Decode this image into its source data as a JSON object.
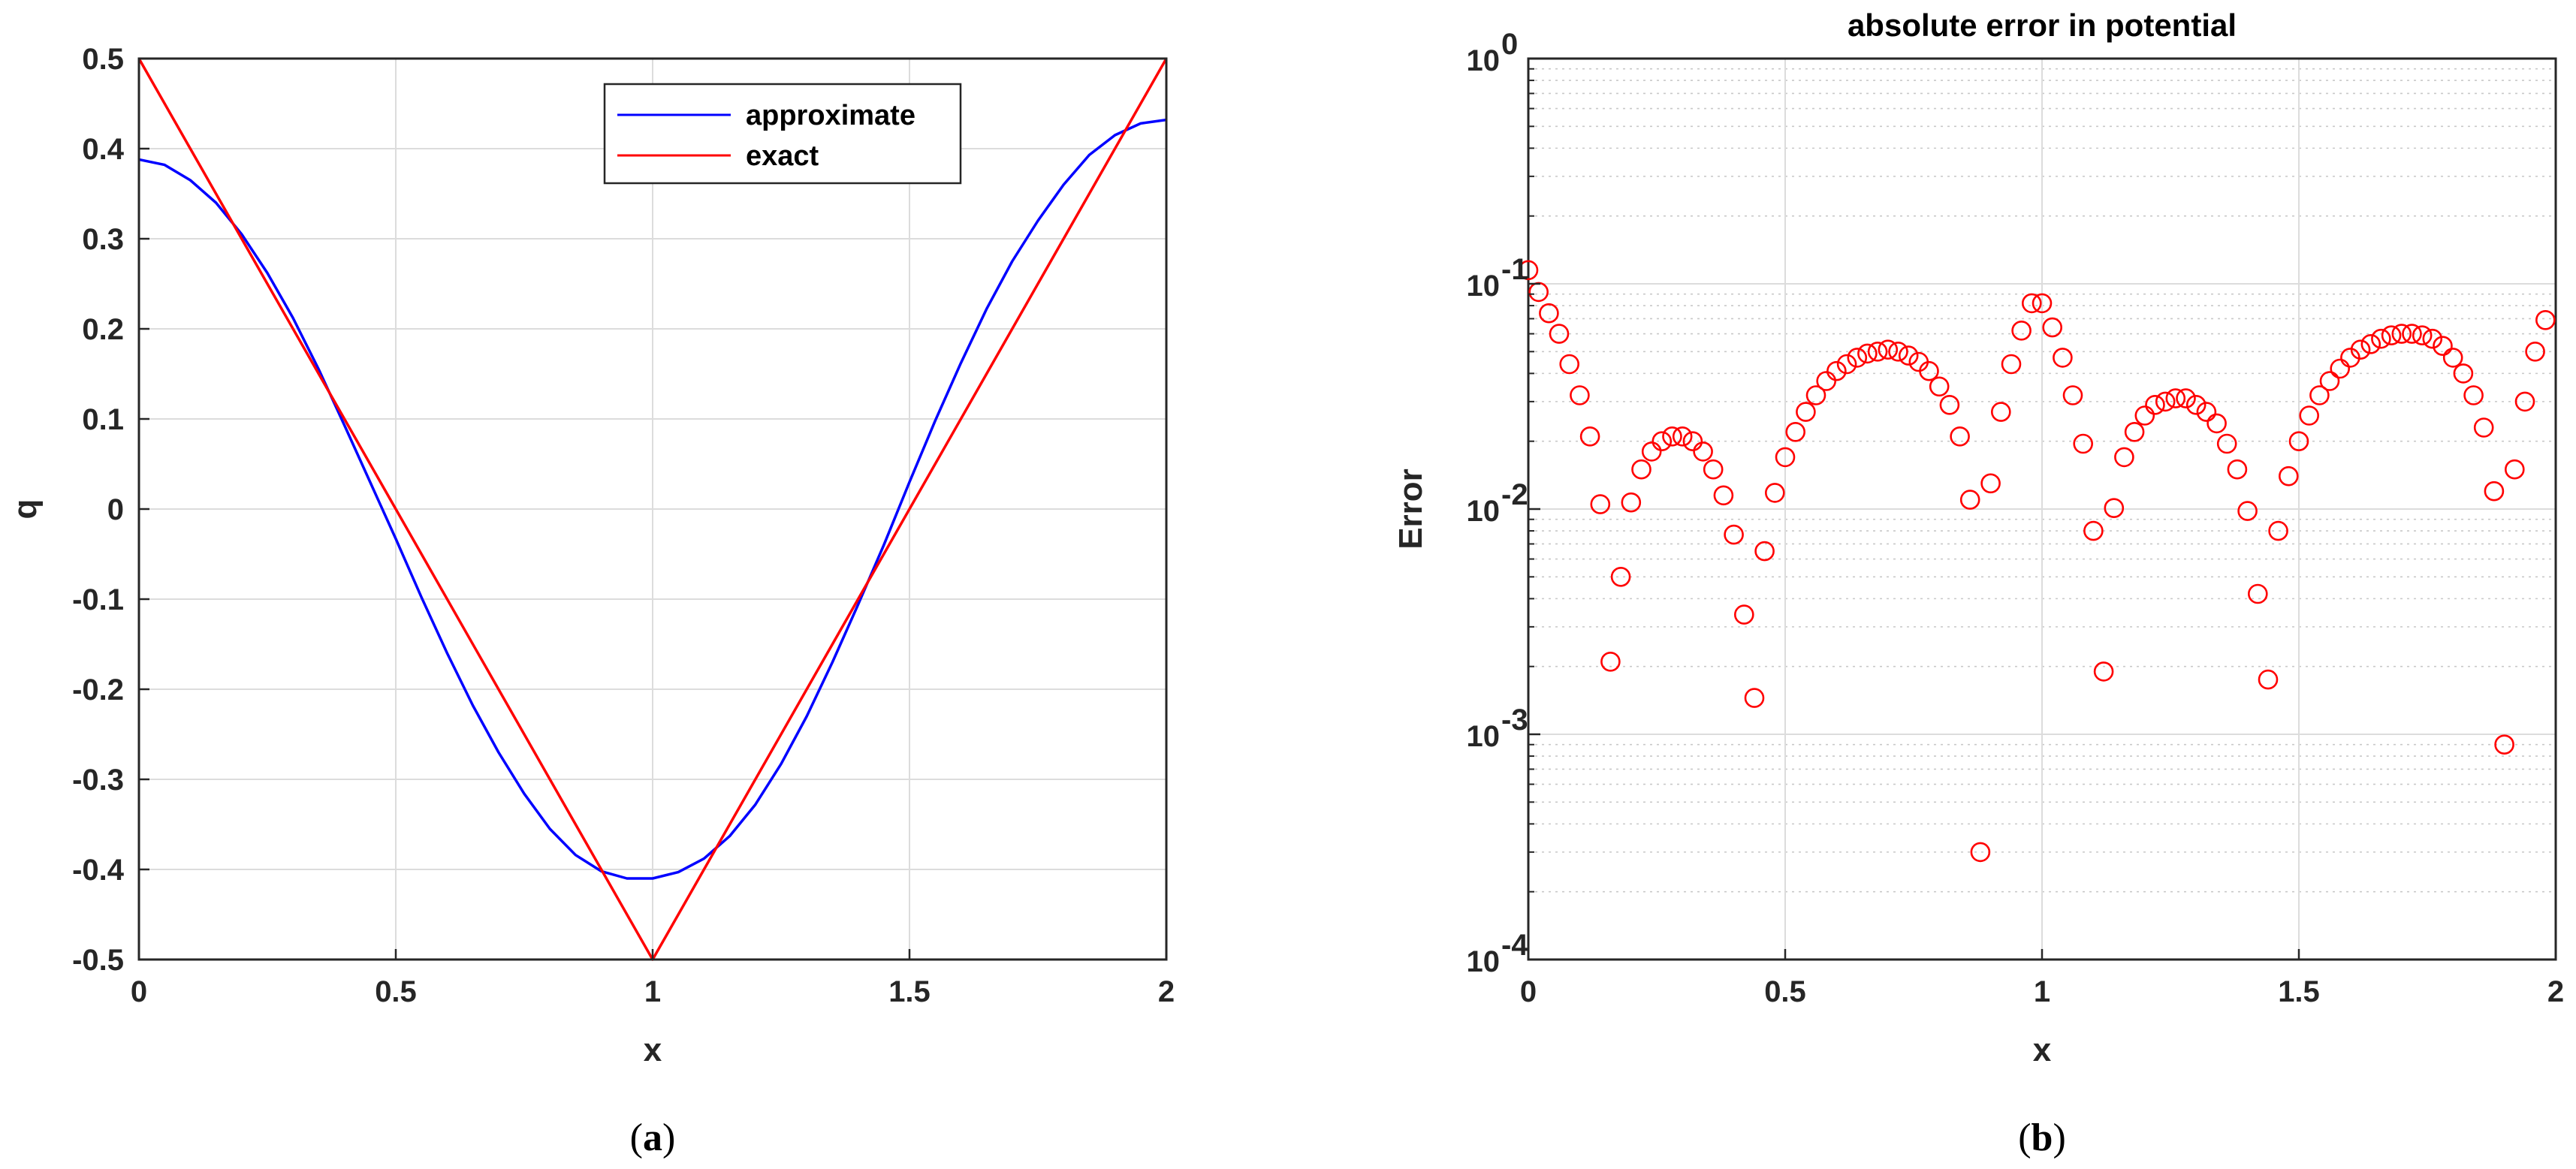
{
  "chart_data": [
    {
      "id": "a",
      "type": "line",
      "caption": "a",
      "xlabel": "x",
      "ylabel": "q",
      "xlim": [
        0,
        2
      ],
      "ylim": [
        -0.5,
        0.5
      ],
      "xticks": [
        0,
        0.5,
        1,
        1.5,
        2
      ],
      "xtick_labels": [
        "0",
        "0.5",
        "1",
        "1.5",
        "2"
      ],
      "yticks": [
        -0.5,
        -0.4,
        -0.3,
        -0.2,
        -0.1,
        0,
        0.1,
        0.2,
        0.3,
        0.4,
        0.5
      ],
      "ytick_labels": [
        "-0.5",
        "-0.4",
        "-0.3",
        "-0.2",
        "-0.1",
        "0",
        "0.1",
        "0.2",
        "0.3",
        "0.4",
        "0.5"
      ],
      "grid": true,
      "legend_position": "top-right",
      "series": [
        {
          "name": "approximate",
          "color": "#0000ff",
          "points": [
            [
              0,
              0.388
            ],
            [
              0.05,
              0.382
            ],
            [
              0.1,
              0.365
            ],
            [
              0.15,
              0.34
            ],
            [
              0.2,
              0.305
            ],
            [
              0.25,
              0.262
            ],
            [
              0.3,
              0.212
            ],
            [
              0.35,
              0.155
            ],
            [
              0.4,
              0.093
            ],
            [
              0.45,
              0.03
            ],
            [
              0.5,
              -0.033
            ],
            [
              0.55,
              -0.098
            ],
            [
              0.6,
              -0.16
            ],
            [
              0.65,
              -0.218
            ],
            [
              0.7,
              -0.27
            ],
            [
              0.75,
              -0.316
            ],
            [
              0.8,
              -0.355
            ],
            [
              0.85,
              -0.384
            ],
            [
              0.9,
              -0.402
            ],
            [
              0.95,
              -0.41
            ],
            [
              1.0,
              -0.41
            ],
            [
              1.05,
              -0.403
            ],
            [
              1.1,
              -0.388
            ],
            [
              1.15,
              -0.363
            ],
            [
              1.2,
              -0.328
            ],
            [
              1.25,
              -0.283
            ],
            [
              1.3,
              -0.23
            ],
            [
              1.35,
              -0.17
            ],
            [
              1.4,
              -0.106
            ],
            [
              1.45,
              -0.04
            ],
            [
              1.5,
              0.03
            ],
            [
              1.55,
              0.098
            ],
            [
              1.6,
              0.162
            ],
            [
              1.65,
              0.222
            ],
            [
              1.7,
              0.275
            ],
            [
              1.75,
              0.32
            ],
            [
              1.8,
              0.36
            ],
            [
              1.85,
              0.393
            ],
            [
              1.9,
              0.415
            ],
            [
              1.95,
              0.428
            ],
            [
              2.0,
              0.432
            ]
          ]
        },
        {
          "name": "exact",
          "color": "#ff0000",
          "points": [
            [
              0,
              0.5
            ],
            [
              1,
              -0.5
            ],
            [
              2,
              0.5
            ]
          ]
        }
      ]
    },
    {
      "id": "b",
      "type": "scatter",
      "caption": "b",
      "title": "absolute error in potential",
      "xlabel": "x",
      "ylabel": "Error",
      "yscale": "log",
      "xlim": [
        0,
        2
      ],
      "ylim": [
        0.0001,
        1
      ],
      "xticks": [
        0,
        0.5,
        1,
        1.5,
        2
      ],
      "xtick_labels": [
        "0",
        "0.5",
        "1",
        "1.5",
        "2"
      ],
      "yticks": [
        0.0001,
        0.001,
        0.01,
        0.1,
        1
      ],
      "ytick_bases": [
        "10",
        "10",
        "10",
        "10",
        "10"
      ],
      "ytick_exps": [
        "-4",
        "-3",
        "-2",
        "-1",
        "0"
      ],
      "grid": true,
      "marker_color": "#ff0000",
      "points": [
        [
          0,
          0.115
        ],
        [
          0.02,
          0.092
        ],
        [
          0.04,
          0.074
        ],
        [
          0.06,
          0.06
        ],
        [
          0.08,
          0.044
        ],
        [
          0.1,
          0.032
        ],
        [
          0.12,
          0.021
        ],
        [
          0.14,
          0.0105
        ],
        [
          0.16,
          0.0021
        ],
        [
          0.18,
          0.005
        ],
        [
          0.2,
          0.0107
        ],
        [
          0.22,
          0.015
        ],
        [
          0.24,
          0.018
        ],
        [
          0.26,
          0.02
        ],
        [
          0.28,
          0.021
        ],
        [
          0.3,
          0.021
        ],
        [
          0.32,
          0.02
        ],
        [
          0.34,
          0.018
        ],
        [
          0.36,
          0.015
        ],
        [
          0.38,
          0.0115
        ],
        [
          0.4,
          0.0077
        ],
        [
          0.42,
          0.0034
        ],
        [
          0.44,
          0.00145
        ],
        [
          0.46,
          0.0065
        ],
        [
          0.48,
          0.0118
        ],
        [
          0.5,
          0.017
        ],
        [
          0.52,
          0.022
        ],
        [
          0.54,
          0.027
        ],
        [
          0.56,
          0.032
        ],
        [
          0.58,
          0.037
        ],
        [
          0.6,
          0.041
        ],
        [
          0.62,
          0.044
        ],
        [
          0.64,
          0.047
        ],
        [
          0.66,
          0.049
        ],
        [
          0.68,
          0.05
        ],
        [
          0.7,
          0.051
        ],
        [
          0.72,
          0.05
        ],
        [
          0.74,
          0.048
        ],
        [
          0.76,
          0.045
        ],
        [
          0.78,
          0.041
        ],
        [
          0.8,
          0.035
        ],
        [
          0.82,
          0.029
        ],
        [
          0.84,
          0.021
        ],
        [
          0.86,
          0.011
        ],
        [
          0.88,
          0.0003
        ],
        [
          0.9,
          0.013
        ],
        [
          0.92,
          0.027
        ],
        [
          0.94,
          0.044
        ],
        [
          0.96,
          0.062
        ],
        [
          0.98,
          0.082
        ],
        [
          1.0,
          0.082
        ],
        [
          1.02,
          0.064
        ],
        [
          1.04,
          0.047
        ],
        [
          1.06,
          0.032
        ],
        [
          1.08,
          0.0195
        ],
        [
          1.1,
          0.008
        ],
        [
          1.12,
          0.0019
        ],
        [
          1.14,
          0.0101
        ],
        [
          1.16,
          0.017
        ],
        [
          1.18,
          0.022
        ],
        [
          1.2,
          0.026
        ],
        [
          1.22,
          0.029
        ],
        [
          1.24,
          0.03
        ],
        [
          1.26,
          0.031
        ],
        [
          1.28,
          0.031
        ],
        [
          1.3,
          0.029
        ],
        [
          1.32,
          0.027
        ],
        [
          1.34,
          0.024
        ],
        [
          1.36,
          0.0195
        ],
        [
          1.38,
          0.015
        ],
        [
          1.4,
          0.0098
        ],
        [
          1.42,
          0.0042
        ],
        [
          1.44,
          0.00175
        ],
        [
          1.46,
          0.008
        ],
        [
          1.48,
          0.014
        ],
        [
          1.5,
          0.02
        ],
        [
          1.52,
          0.026
        ],
        [
          1.54,
          0.032
        ],
        [
          1.56,
          0.037
        ],
        [
          1.58,
          0.042
        ],
        [
          1.6,
          0.047
        ],
        [
          1.62,
          0.051
        ],
        [
          1.64,
          0.054
        ],
        [
          1.66,
          0.057
        ],
        [
          1.68,
          0.059
        ],
        [
          1.7,
          0.06
        ],
        [
          1.72,
          0.06
        ],
        [
          1.74,
          0.059
        ],
        [
          1.76,
          0.057
        ],
        [
          1.78,
          0.053
        ],
        [
          1.8,
          0.047
        ],
        [
          1.82,
          0.04
        ],
        [
          1.84,
          0.032
        ],
        [
          1.86,
          0.023
        ],
        [
          1.88,
          0.012
        ],
        [
          1.9,
          0.0009
        ],
        [
          1.92,
          0.015
        ],
        [
          1.94,
          0.03
        ],
        [
          1.96,
          0.05
        ],
        [
          1.98,
          0.069
        ]
      ]
    }
  ]
}
